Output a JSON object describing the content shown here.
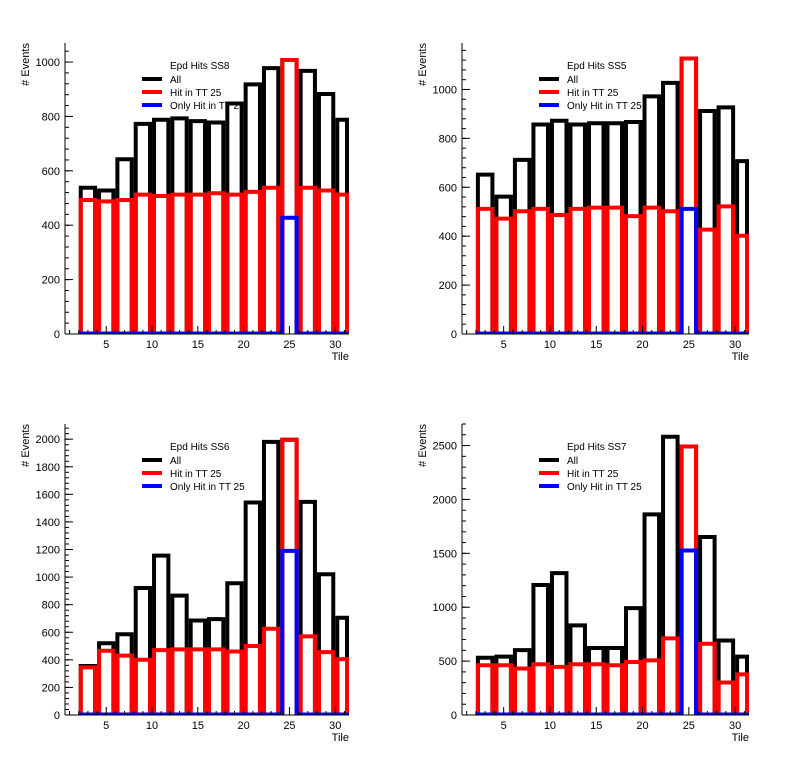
{
  "colors": {
    "all": "#000000",
    "hit": "#ff0000",
    "only": "#0000ff",
    "axis": "#000000"
  },
  "chart_data": [
    {
      "type": "bar",
      "title": "Epd Hits SS8",
      "xlabel": "Tile",
      "ylabel": "# Events",
      "xlim": [
        0.5,
        31.5
      ],
      "ylim": [
        0,
        1070
      ],
      "yticks": [
        0,
        200,
        400,
        600,
        800,
        1000
      ],
      "xticks": [
        5,
        10,
        15,
        20,
        25,
        30
      ],
      "legend": {
        "position": "top-left",
        "entries": [
          "All",
          "Hit in TT 25",
          "Only Hit in TT 25"
        ]
      },
      "bin_edges_step": 2,
      "x": [
        3,
        5,
        7,
        9,
        11,
        13,
        15,
        17,
        19,
        21,
        23,
        25,
        27,
        29,
        31
      ],
      "series": [
        {
          "name": "All",
          "values": [
            545,
            535,
            650,
            780,
            795,
            800,
            790,
            785,
            855,
            925,
            985,
            1015,
            975,
            890,
            795
          ]
        },
        {
          "name": "Hit in TT 25",
          "values": [
            500,
            495,
            500,
            520,
            515,
            520,
            520,
            525,
            520,
            530,
            545,
            1015,
            545,
            535,
            520
          ]
        },
        {
          "name": "Only Hit in TT 25",
          "values": [
            0,
            0,
            0,
            0,
            0,
            0,
            0,
            0,
            0,
            0,
            0,
            435,
            0,
            0,
            0
          ]
        }
      ]
    },
    {
      "type": "bar",
      "title": "Epd Hits SS5",
      "xlabel": "Tile",
      "ylabel": "# Events",
      "xlim": [
        0.5,
        31.5
      ],
      "ylim": [
        0,
        1190
      ],
      "yticks": [
        0,
        200,
        400,
        600,
        800,
        1000
      ],
      "xticks": [
        5,
        10,
        15,
        20,
        25,
        30
      ],
      "legend": {
        "position": "top-left",
        "entries": [
          "All",
          "Hit in TT 25",
          "Only Hit in TT 25"
        ]
      },
      "bin_edges_step": 2,
      "x": [
        3,
        5,
        7,
        9,
        11,
        13,
        15,
        17,
        19,
        21,
        23,
        25,
        27,
        29,
        31
      ],
      "series": [
        {
          "name": "All",
          "values": [
            660,
            570,
            720,
            865,
            880,
            865,
            870,
            870,
            875,
            980,
            1035,
            1135,
            920,
            935,
            715
          ]
        },
        {
          "name": "Hit in TT 25",
          "values": [
            520,
            480,
            510,
            520,
            495,
            520,
            525,
            525,
            490,
            525,
            510,
            1135,
            435,
            530,
            410
          ]
        },
        {
          "name": "Only Hit in TT 25",
          "values": [
            0,
            0,
            0,
            0,
            0,
            0,
            0,
            0,
            0,
            0,
            0,
            520,
            0,
            0,
            0
          ]
        }
      ]
    },
    {
      "type": "bar",
      "title": "Epd Hits SS6",
      "xlabel": "Tile",
      "ylabel": "# Events",
      "xlim": [
        0.5,
        31.5
      ],
      "ylim": [
        0,
        2110
      ],
      "yticks": [
        0,
        200,
        400,
        600,
        800,
        1000,
        1200,
        1400,
        1600,
        1800,
        2000
      ],
      "xticks": [
        5,
        10,
        15,
        20,
        25,
        30
      ],
      "legend": {
        "position": "top-left",
        "entries": [
          "All",
          "Hit in TT 25",
          "Only Hit in TT 25"
        ]
      },
      "bin_edges_step": 2,
      "x": [
        3,
        5,
        7,
        9,
        11,
        13,
        15,
        17,
        19,
        21,
        23,
        25,
        27,
        29,
        31
      ],
      "series": [
        {
          "name": "All",
          "values": [
            370,
            535,
            600,
            935,
            1170,
            880,
            700,
            710,
            970,
            1555,
            1995,
            2010,
            1560,
            1035,
            720
          ]
        },
        {
          "name": "Hit in TT 25",
          "values": [
            360,
            480,
            445,
            415,
            485,
            490,
            490,
            490,
            475,
            515,
            640,
            2010,
            585,
            470,
            420
          ]
        },
        {
          "name": "Only Hit in TT 25",
          "values": [
            0,
            0,
            0,
            0,
            0,
            0,
            0,
            0,
            0,
            0,
            0,
            1205,
            0,
            0,
            0
          ]
        }
      ]
    },
    {
      "type": "bar",
      "title": "Epd Hits SS7",
      "xlabel": "Tile",
      "ylabel": "# Events",
      "xlim": [
        0.5,
        31.5
      ],
      "ylim": [
        0,
        2700
      ],
      "yticks": [
        0,
        500,
        1000,
        1500,
        2000,
        2500
      ],
      "xticks": [
        5,
        10,
        15,
        20,
        25,
        30
      ],
      "legend": {
        "position": "top-left",
        "entries": [
          "All",
          "Hit in TT 25",
          "Only Hit in TT 25"
        ]
      },
      "bin_edges_step": 2,
      "x": [
        3,
        5,
        7,
        9,
        11,
        13,
        15,
        17,
        19,
        21,
        23,
        25,
        27,
        29,
        31
      ],
      "series": [
        {
          "name": "All",
          "values": [
            550,
            560,
            620,
            1225,
            1335,
            850,
            640,
            640,
            1010,
            1880,
            2600,
            2510,
            1670,
            710,
            560
          ]
        },
        {
          "name": "Hit in TT 25",
          "values": [
            480,
            480,
            450,
            490,
            465,
            490,
            490,
            480,
            510,
            525,
            730,
            2510,
            680,
            320,
            395
          ]
        },
        {
          "name": "Only Hit in TT 25",
          "values": [
            0,
            0,
            0,
            0,
            0,
            0,
            0,
            0,
            0,
            0,
            0,
            1545,
            0,
            0,
            0
          ]
        }
      ]
    }
  ]
}
